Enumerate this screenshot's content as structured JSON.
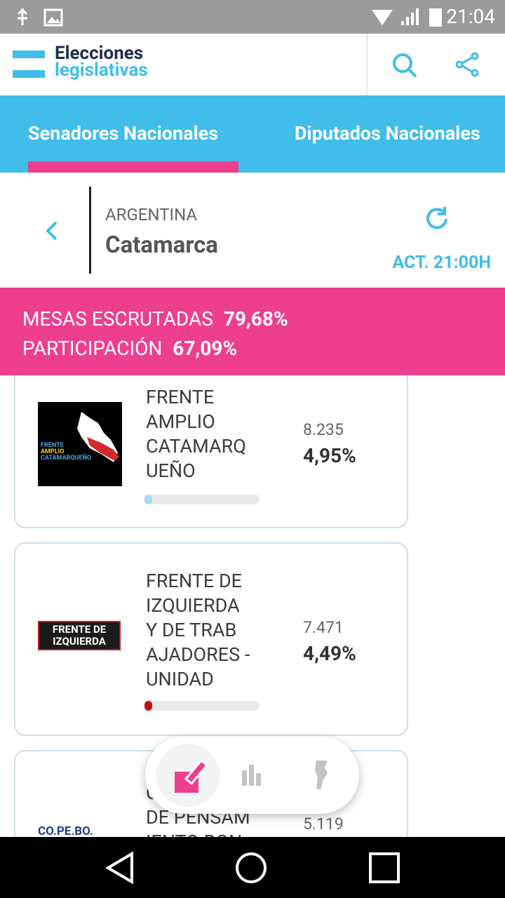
{
  "status_bar": {
    "time": "21:04"
  },
  "header": {
    "brand_line1": "Elecciones",
    "brand_line2": "legislativas"
  },
  "tabs": [
    "Senadores Nacionales",
    "Diputados Nacionales"
  ],
  "location": {
    "country": "ARGENTINA",
    "province": "Catamarca",
    "updated": "ACT. 21:00H"
  },
  "stats": {
    "mesas_label": "MESAS ESCRUTADAS",
    "mesas_value": "79,68%",
    "participacion_label": "PARTICIPACIÓN",
    "participacion_value": "67,09%"
  },
  "parties": [
    {
      "name_lines": [
        "FRENTE",
        "AMPLIO",
        "CATAMARQ",
        "UEÑO"
      ],
      "logo_text": [
        "FRENTE",
        "AMPLIO",
        "CATAMARQUEÑO"
      ],
      "votes": "8.235",
      "percent": "4,95%"
    },
    {
      "name_lines": [
        "FRENTE DE",
        "IZQUIERDA",
        "Y DE TRAB",
        "AJADORES -",
        "UNIDAD"
      ],
      "logo_text": [
        "FRENTE DE",
        "IZQUIERDA"
      ],
      "votes": "7.471",
      "percent": "4,49%"
    },
    {
      "name_lines": [
        "C",
        "DE PENSAM",
        "IENTO BON"
      ],
      "logo_text": [
        "CO.PE.BO."
      ],
      "votes": "5.119"
    }
  ]
}
